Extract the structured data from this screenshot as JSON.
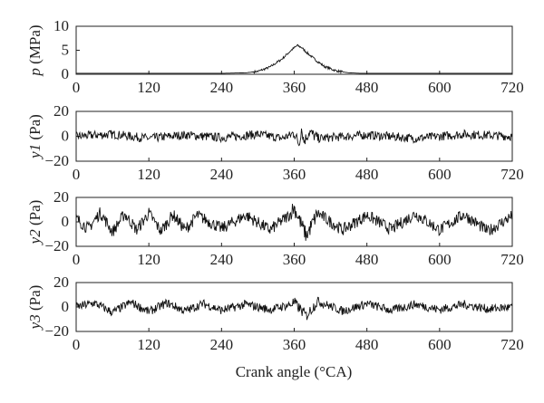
{
  "chart_data": [
    {
      "type": "line",
      "panel": "p",
      "ylabel_var": "p",
      "ylabel_unit": " (MPa)",
      "xlim": [
        0,
        720
      ],
      "ylim": [
        0,
        10
      ],
      "yticks": [
        "10",
        "5",
        "0"
      ],
      "xticks": [
        "0",
        "120",
        "240",
        "360",
        "480",
        "600",
        "720"
      ],
      "x": [
        0,
        240,
        280,
        300,
        320,
        340,
        355,
        365,
        372,
        380,
        395,
        410,
        430,
        450,
        470,
        720
      ],
      "y": [
        0.2,
        0.2,
        0.3,
        0.6,
        1.5,
        3.2,
        5.0,
        6.0,
        5.6,
        4.6,
        3.0,
        1.6,
        0.7,
        0.3,
        0.2,
        0.2
      ]
    },
    {
      "type": "line",
      "panel": "y1",
      "ylabel_var": "y1",
      "ylabel_unit": " (Pa)",
      "xlim": [
        0,
        720
      ],
      "ylim": [
        -20,
        20
      ],
      "yticks": [
        "20",
        "0",
        "−20"
      ],
      "xticks": [
        "0",
        "120",
        "240",
        "360",
        "480",
        "600",
        "720"
      ],
      "x": [
        0,
        60,
        120,
        180,
        240,
        300,
        340,
        360,
        368,
        372,
        376,
        385,
        400,
        480,
        560,
        640,
        720
      ],
      "y": [
        0,
        3,
        -3,
        2,
        -2,
        3,
        -3,
        4,
        -9,
        9,
        -6,
        5,
        -3,
        2,
        -3,
        3,
        0
      ]
    },
    {
      "type": "line",
      "panel": "y2",
      "ylabel_var": "y2",
      "ylabel_unit": " (Pa)",
      "xlim": [
        0,
        720
      ],
      "ylim": [
        -20,
        20
      ],
      "yticks": [
        "20",
        "0",
        "−20"
      ],
      "xticks": [
        "0",
        "120",
        "240",
        "360",
        "480",
        "600",
        "720"
      ],
      "x": [
        0,
        20,
        40,
        60,
        80,
        100,
        120,
        140,
        160,
        180,
        200,
        240,
        280,
        320,
        360,
        380,
        400,
        440,
        480,
        520,
        560,
        600,
        640,
        680,
        720
      ],
      "y": [
        5,
        -10,
        14,
        -15,
        12,
        -12,
        13,
        -14,
        11,
        -12,
        10,
        -10,
        10,
        -12,
        16,
        -16,
        12,
        -12,
        10,
        -11,
        12,
        -12,
        11,
        -14,
        9
      ]
    },
    {
      "type": "line",
      "panel": "y3",
      "ylabel_var": "y3",
      "ylabel_unit": " (Pa)",
      "xlim": [
        0,
        720
      ],
      "ylim": [
        -20,
        20
      ],
      "yticks": [
        "20",
        "0",
        "−20"
      ],
      "xticks": [
        "0",
        "120",
        "240",
        "360",
        "480",
        "600",
        "720"
      ],
      "x": [
        0,
        30,
        60,
        90,
        120,
        150,
        180,
        210,
        240,
        280,
        320,
        360,
        380,
        400,
        440,
        480,
        520,
        560,
        600,
        640,
        680,
        720
      ],
      "y": [
        0,
        6,
        -8,
        7,
        -7,
        6,
        -6,
        5,
        -5,
        4,
        -4,
        5,
        -10,
        8,
        -6,
        5,
        -5,
        4,
        -4,
        4,
        -3,
        0
      ]
    }
  ],
  "xlabel": "Crank angle (°CA)"
}
